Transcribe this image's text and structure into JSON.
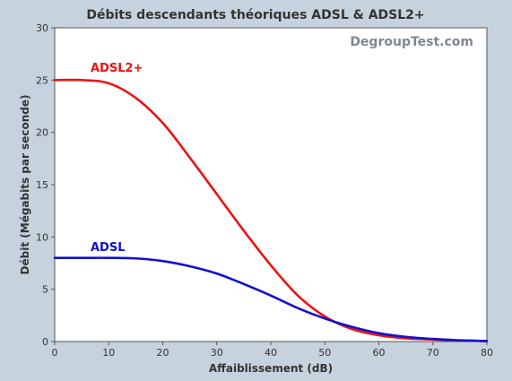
{
  "chart_data": {
    "type": "line",
    "title": "Débits descendants théoriques ADSL & ADSL2+",
    "watermark": "DegroupTest.com",
    "xlabel": "Affaiblissement (dB)",
    "ylabel": "Débit (Mégabits par seconde)",
    "xlim": [
      0,
      80
    ],
    "ylim": [
      0,
      30
    ],
    "xticks": [
      0,
      10,
      20,
      30,
      40,
      50,
      60,
      70,
      80
    ],
    "yticks": [
      0,
      5,
      10,
      15,
      20,
      25,
      30
    ],
    "grid": false,
    "background": "#ffffff",
    "series": [
      {
        "name": "ADSL2+",
        "color": "#ee1111",
        "x": [
          0,
          5,
          10,
          15,
          20,
          25,
          30,
          35,
          40,
          45,
          50,
          55,
          60,
          65,
          70,
          75,
          80
        ],
        "y": [
          25,
          25,
          24.7,
          23.3,
          20.9,
          17.6,
          14.1,
          10.6,
          7.3,
          4.4,
          2.4,
          1.2,
          0.6,
          0.3,
          0.2,
          0.1,
          0.05
        ]
      },
      {
        "name": "ADSL",
        "color": "#1111cc",
        "x": [
          0,
          5,
          10,
          15,
          20,
          25,
          30,
          35,
          40,
          45,
          50,
          55,
          60,
          65,
          70,
          75,
          80
        ],
        "y": [
          8,
          8,
          8,
          7.95,
          7.7,
          7.2,
          6.5,
          5.5,
          4.4,
          3.2,
          2.2,
          1.4,
          0.8,
          0.45,
          0.25,
          0.12,
          0.05
        ]
      }
    ]
  }
}
